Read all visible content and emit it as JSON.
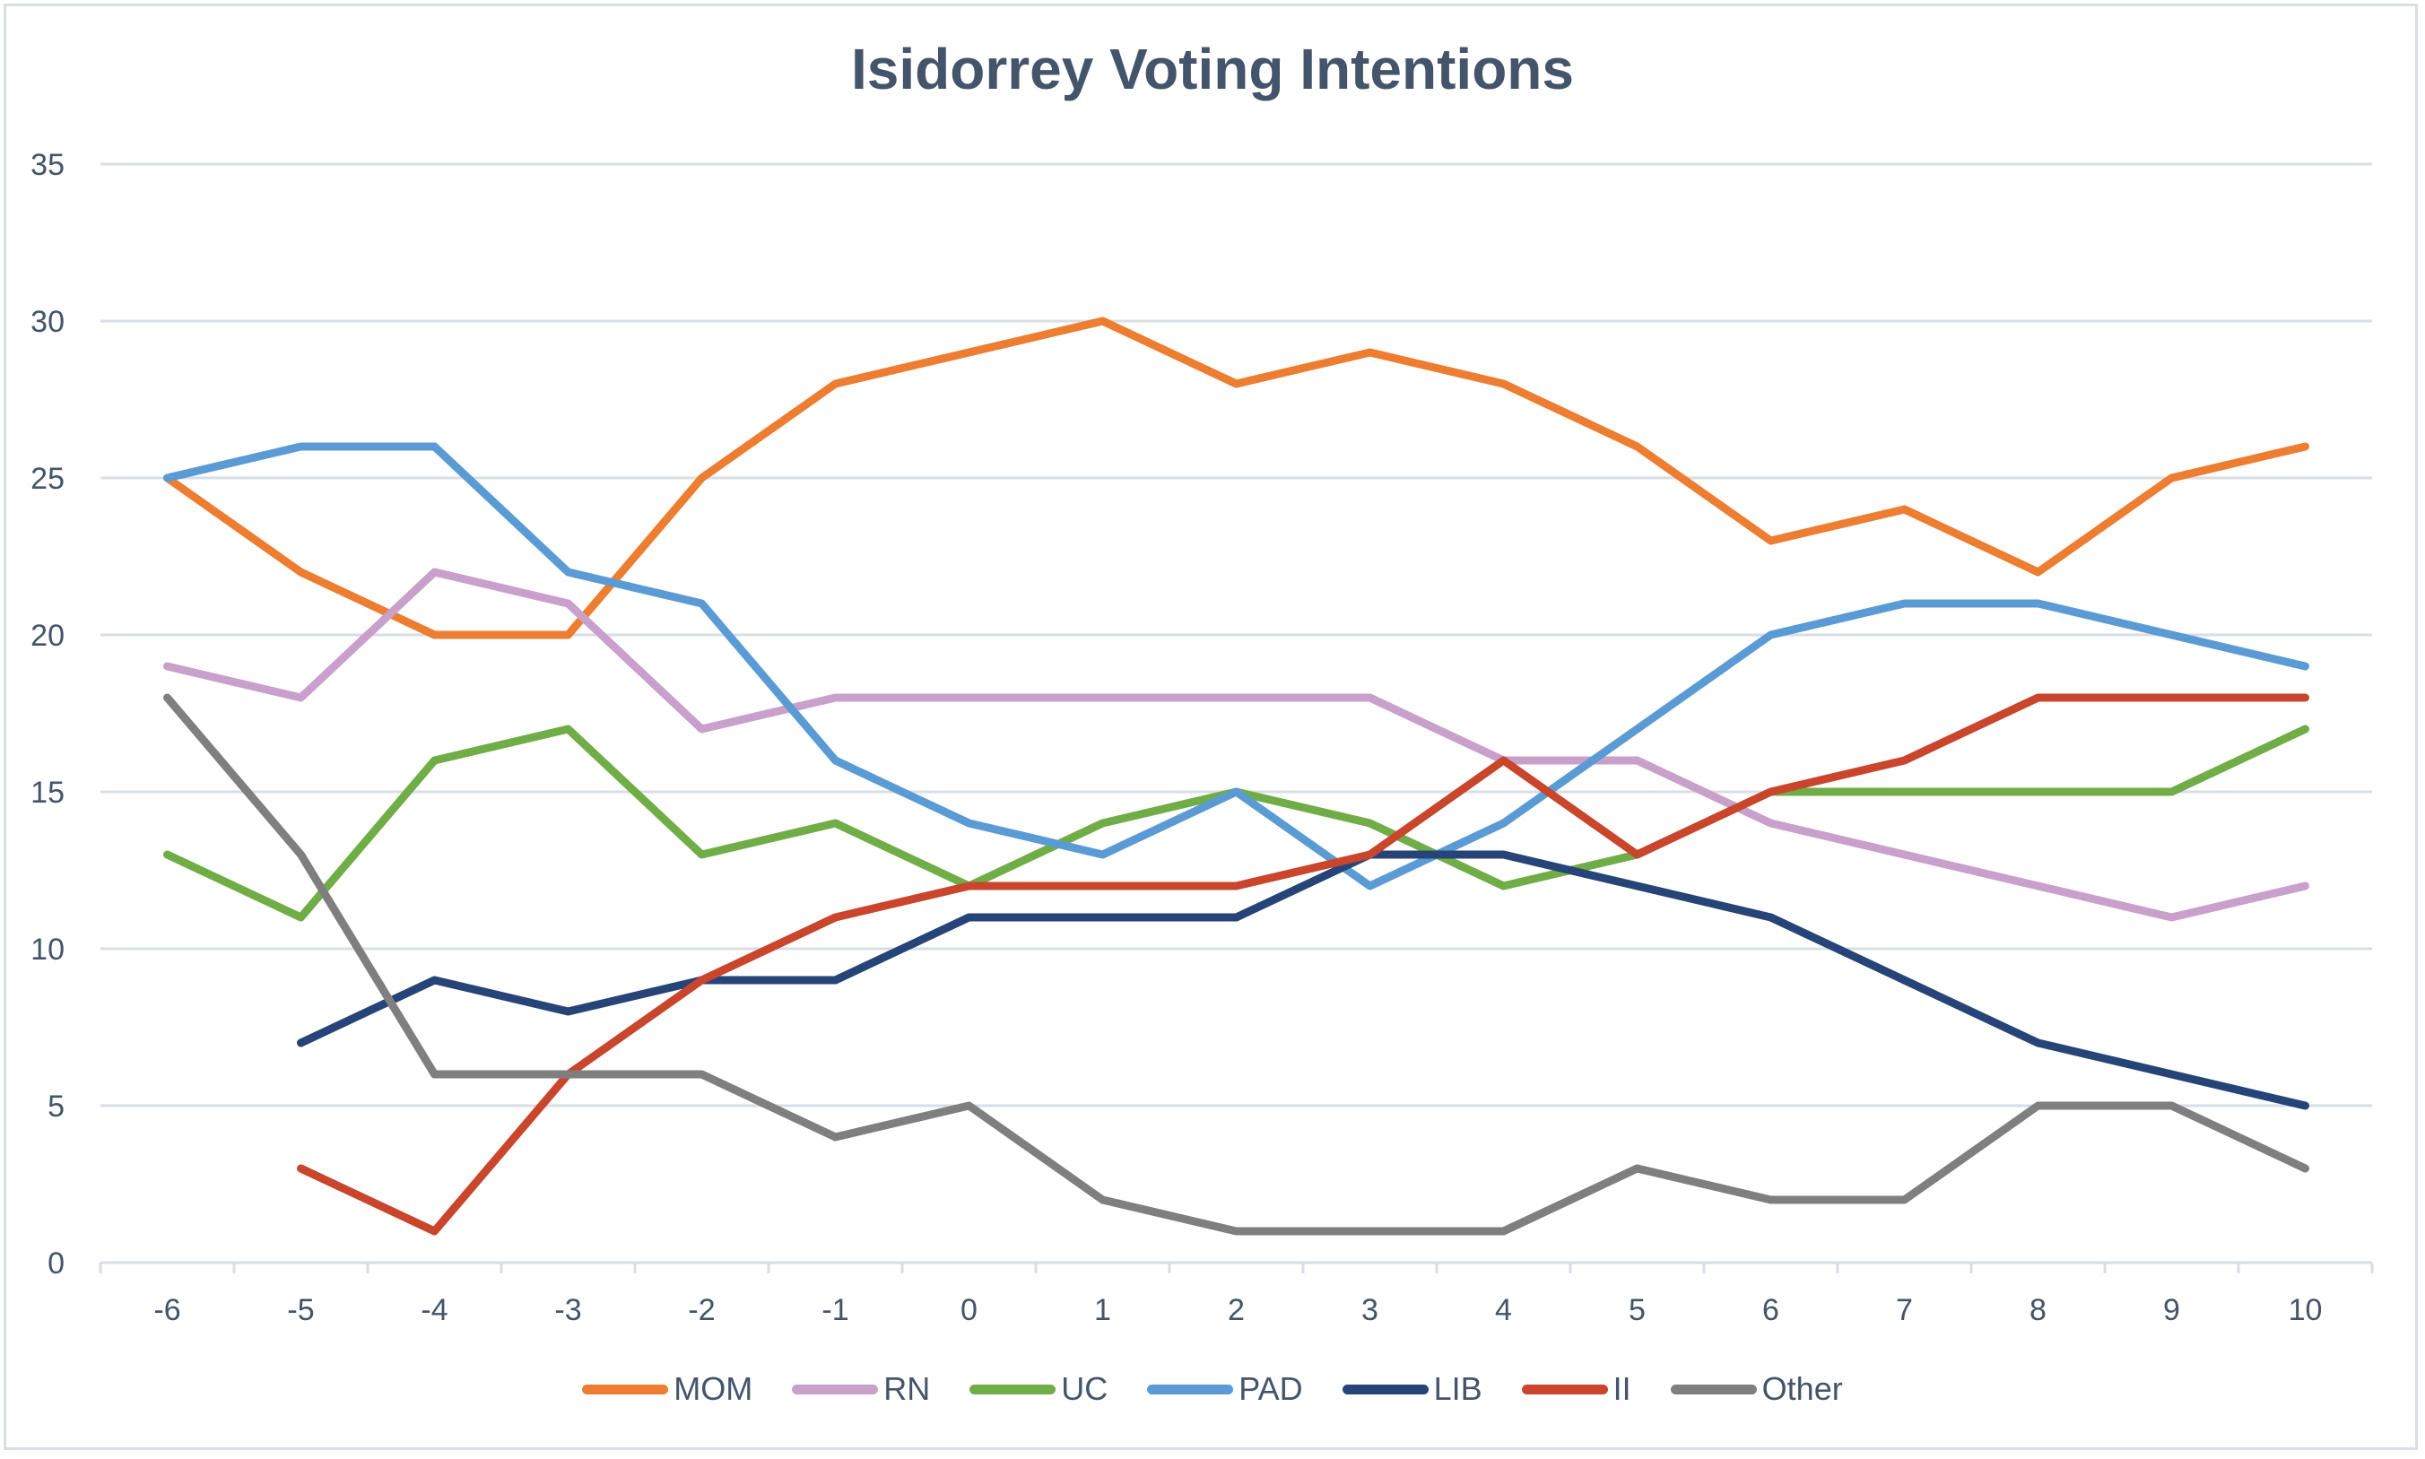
{
  "chart_data": {
    "type": "line",
    "title": "Isidorrey Voting Intentions",
    "xlabel": "",
    "ylabel": "",
    "ylim": [
      0,
      35
    ],
    "yticks": [
      "0",
      "5",
      "10",
      "15",
      "20",
      "25",
      "30",
      "35"
    ],
    "ytick_values": [
      0,
      5,
      10,
      15,
      20,
      25,
      30,
      35
    ],
    "categories": [
      "-6",
      "-5",
      "-4",
      "-3",
      "-2",
      "-1",
      "0",
      "1",
      "2",
      "3",
      "4",
      "5",
      "6",
      "7",
      "8",
      "9",
      "10"
    ],
    "grid": true,
    "legend_position": "bottom",
    "series": [
      {
        "name": "MOM",
        "color": "#ED7D31",
        "values": [
          25,
          22,
          20,
          20,
          25,
          28,
          29,
          30,
          28,
          29,
          28,
          26,
          23,
          24,
          22,
          25,
          26
        ]
      },
      {
        "name": "RN",
        "color": "#C9A0CB",
        "values": [
          19,
          18,
          22,
          21,
          17,
          18,
          18,
          18,
          18,
          18,
          16,
          16,
          14,
          13,
          12,
          11,
          12
        ]
      },
      {
        "name": "UC",
        "color": "#70AD47",
        "values": [
          13,
          11,
          16,
          17,
          13,
          14,
          12,
          14,
          15,
          14,
          12,
          13,
          15,
          15,
          15,
          15,
          17
        ]
      },
      {
        "name": "PAD",
        "color": "#5B9BD5",
        "values": [
          25,
          26,
          26,
          22,
          21,
          16,
          14,
          13,
          15,
          12,
          14,
          17,
          20,
          21,
          21,
          20,
          19
        ]
      },
      {
        "name": "LIB",
        "color": "#264478",
        "values": [
          null,
          7,
          9,
          8,
          9,
          9,
          11,
          11,
          11,
          13,
          13,
          12,
          11,
          9,
          7,
          6,
          5
        ]
      },
      {
        "name": "II",
        "color": "#C9452B",
        "values": [
          null,
          3,
          1,
          6,
          9,
          11,
          12,
          12,
          12,
          13,
          16,
          13,
          15,
          16,
          18,
          18,
          18
        ]
      },
      {
        "name": "Other",
        "color": "#7F7F7F",
        "values": [
          18,
          13,
          6,
          6,
          6,
          4,
          5,
          2,
          1,
          1,
          1,
          3,
          2,
          2,
          5,
          5,
          3
        ]
      }
    ]
  }
}
